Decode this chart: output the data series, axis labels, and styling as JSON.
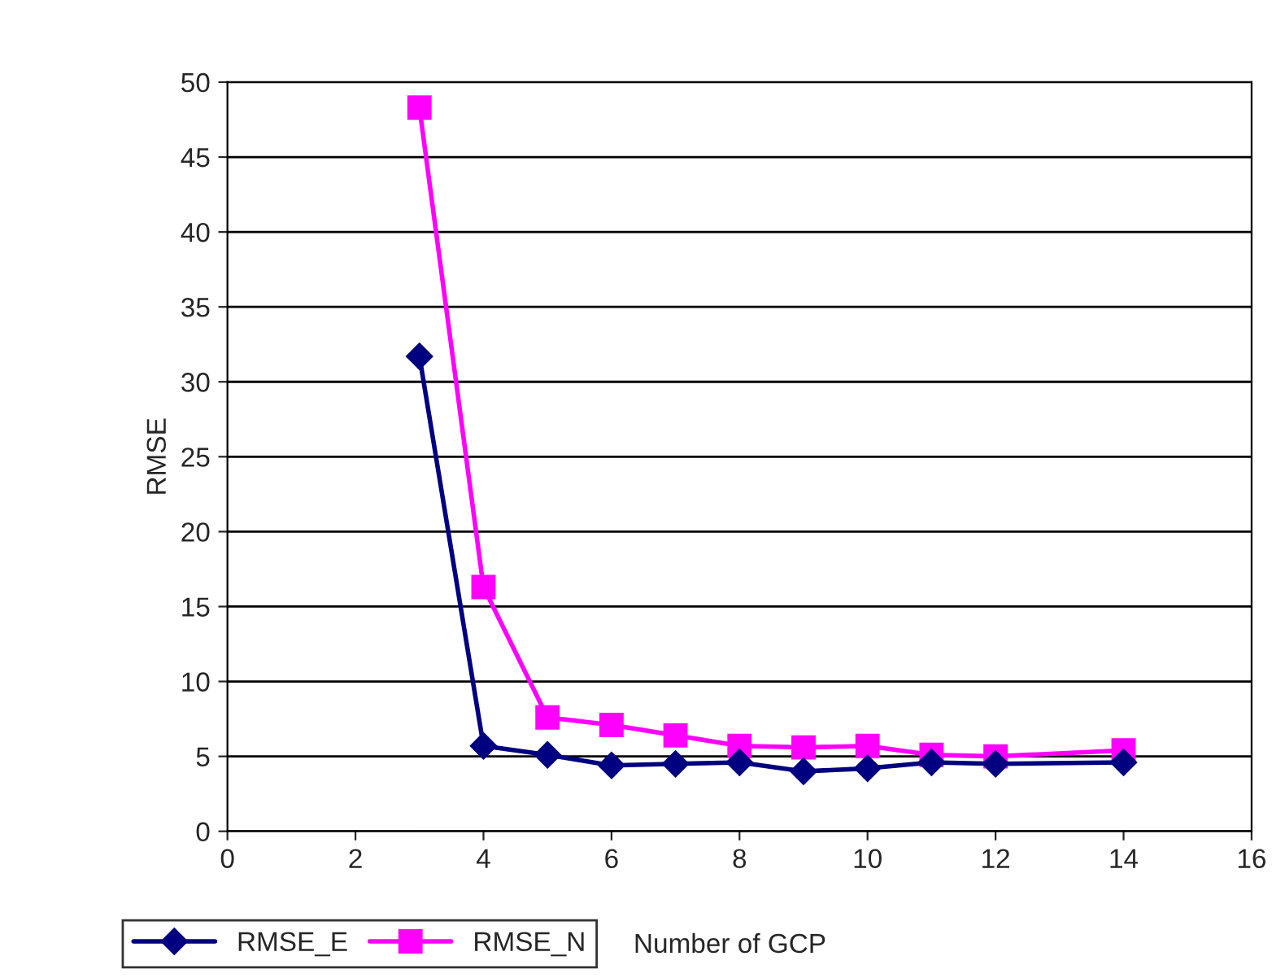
{
  "chart_data": {
    "type": "line",
    "xlabel": "Number of GCP",
    "ylabel": "RMSE",
    "x": [
      3,
      4,
      5,
      6,
      7,
      8,
      9,
      10,
      11,
      12,
      14
    ],
    "series": [
      {
        "name": "RMSE_E",
        "color": "#000080",
        "marker": "diamond",
        "values": [
          31.7,
          5.7,
          5.1,
          4.4,
          4.5,
          4.6,
          4.0,
          4.2,
          4.6,
          4.5,
          4.6
        ]
      },
      {
        "name": "RMSE_N",
        "color": "#ff00ff",
        "marker": "square",
        "values": [
          48.3,
          16.3,
          7.6,
          7.1,
          6.4,
          5.7,
          5.6,
          5.7,
          5.1,
          5.0,
          5.4
        ]
      }
    ],
    "xlim": [
      0,
      16
    ],
    "xticks": [
      0,
      2,
      4,
      6,
      8,
      10,
      12,
      14,
      16
    ],
    "ylim": [
      0,
      50
    ],
    "yticks": [
      0,
      5,
      10,
      15,
      20,
      25,
      30,
      35,
      40,
      45,
      50
    ],
    "grid": "y",
    "legend": "bottom left",
    "line_style": "solid"
  }
}
